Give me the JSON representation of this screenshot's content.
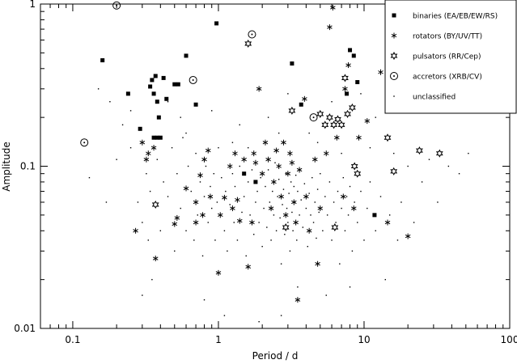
{
  "chart_data": {
    "type": "scatter",
    "title": "",
    "xlabel": "Period / d",
    "ylabel": "Amplitude",
    "x_scale": "log",
    "y_scale": "log",
    "xlim": [
      0.06,
      100
    ],
    "ylim": [
      0.01,
      1
    ],
    "x_ticks": [
      {
        "value": 0.1,
        "label": "0.1"
      },
      {
        "value": 1,
        "label": "1"
      },
      {
        "value": 10,
        "label": "10"
      },
      {
        "value": 100,
        "label": "100"
      }
    ],
    "y_ticks": [
      {
        "value": 0.01,
        "label": "0.01"
      },
      {
        "value": 0.1,
        "label": "0.1"
      },
      {
        "value": 1,
        "label": "1"
      }
    ],
    "grid": false,
    "legend_position": "top-right",
    "series": [
      {
        "name": "binaries (EA/EB/EW/RS)",
        "marker": "filled-square",
        "points": [
          [
            0.16,
            0.45
          ],
          [
            0.24,
            0.28
          ],
          [
            0.29,
            0.17
          ],
          [
            0.34,
            0.31
          ],
          [
            0.35,
            0.34
          ],
          [
            0.36,
            0.28
          ],
          [
            0.37,
            0.36
          ],
          [
            0.38,
            0.25
          ],
          [
            0.39,
            0.2
          ],
          [
            0.36,
            0.15
          ],
          [
            0.38,
            0.15
          ],
          [
            0.4,
            0.15
          ],
          [
            0.42,
            0.35
          ],
          [
            0.44,
            0.26
          ],
          [
            0.5,
            0.32
          ],
          [
            0.53,
            0.32
          ],
          [
            0.6,
            0.48
          ],
          [
            0.7,
            0.24
          ],
          [
            0.97,
            0.76
          ],
          [
            1.5,
            0.09
          ],
          [
            1.8,
            0.08
          ],
          [
            3.2,
            0.43
          ],
          [
            3.7,
            0.24
          ],
          [
            7.6,
            0.28
          ],
          [
            8.0,
            0.52
          ],
          [
            8.5,
            0.48
          ],
          [
            9.0,
            0.33
          ],
          [
            11.8,
            0.05
          ],
          [
            14.5,
            0.43
          ]
        ]
      },
      {
        "name": "rotators (BY/UV/TT)",
        "marker": "asterisk",
        "points": [
          [
            0.27,
            0.04
          ],
          [
            0.3,
            0.14
          ],
          [
            0.32,
            0.11
          ],
          [
            0.33,
            0.12
          ],
          [
            0.36,
            0.13
          ],
          [
            0.37,
            0.027
          ],
          [
            0.5,
            0.044
          ],
          [
            0.52,
            0.048
          ],
          [
            0.6,
            0.073
          ],
          [
            0.7,
            0.045
          ],
          [
            0.7,
            0.06
          ],
          [
            0.75,
            0.088
          ],
          [
            0.78,
            0.05
          ],
          [
            0.8,
            0.11
          ],
          [
            0.85,
            0.125
          ],
          [
            0.88,
            0.065
          ],
          [
            1.0,
            0.022
          ],
          [
            1.03,
            0.05
          ],
          [
            1.1,
            0.064
          ],
          [
            1.2,
            0.1
          ],
          [
            1.25,
            0.055
          ],
          [
            1.3,
            0.12
          ],
          [
            1.35,
            0.062
          ],
          [
            1.4,
            0.046
          ],
          [
            1.5,
            0.11
          ],
          [
            1.6,
            0.024
          ],
          [
            1.7,
            0.045
          ],
          [
            1.75,
            0.12
          ],
          [
            1.8,
            0.105
          ],
          [
            1.9,
            0.3
          ],
          [
            2.0,
            0.09
          ],
          [
            2.1,
            0.14
          ],
          [
            2.2,
            0.11
          ],
          [
            2.3,
            0.055
          ],
          [
            2.4,
            0.08
          ],
          [
            2.5,
            0.125
          ],
          [
            2.6,
            0.1
          ],
          [
            2.7,
            0.065
          ],
          [
            2.8,
            0.14
          ],
          [
            2.9,
            0.05
          ],
          [
            3.0,
            0.09
          ],
          [
            3.1,
            0.12
          ],
          [
            3.2,
            0.105
          ],
          [
            3.3,
            0.06
          ],
          [
            3.4,
            0.045
          ],
          [
            3.5,
            0.015
          ],
          [
            3.6,
            0.095
          ],
          [
            3.9,
            0.26
          ],
          [
            4.0,
            0.065
          ],
          [
            4.2,
            0.04
          ],
          [
            4.6,
            0.11
          ],
          [
            4.8,
            0.025
          ],
          [
            5.0,
            0.055
          ],
          [
            5.5,
            0.12
          ],
          [
            5.8,
            0.72
          ],
          [
            6.1,
            0.95
          ],
          [
            6.5,
            0.15
          ],
          [
            7.2,
            0.065
          ],
          [
            7.4,
            0.3
          ],
          [
            7.8,
            0.42
          ],
          [
            8.5,
            0.055
          ],
          [
            9.2,
            0.15
          ],
          [
            10.5,
            0.19
          ],
          [
            13.0,
            0.38
          ],
          [
            14.5,
            0.045
          ],
          [
            20.0,
            0.037
          ]
        ]
      },
      {
        "name": "pulsators (RR/Cep)",
        "marker": "star",
        "points": [
          [
            0.37,
            0.058
          ],
          [
            1.6,
            0.57
          ],
          [
            3.2,
            0.22
          ],
          [
            2.9,
            0.042
          ],
          [
            5.0,
            0.21
          ],
          [
            5.4,
            0.18
          ],
          [
            5.8,
            0.2
          ],
          [
            6.2,
            0.18
          ],
          [
            6.6,
            0.195
          ],
          [
            7.0,
            0.18
          ],
          [
            7.4,
            0.35
          ],
          [
            7.7,
            0.21
          ],
          [
            8.3,
            0.23
          ],
          [
            8.6,
            0.1
          ],
          [
            9.0,
            0.09
          ],
          [
            6.3,
            0.042
          ],
          [
            14.5,
            0.15
          ],
          [
            16.0,
            0.093
          ],
          [
            24.0,
            0.125
          ],
          [
            33.0,
            0.12
          ]
        ]
      },
      {
        "name": "accretors (XRB/CV)",
        "marker": "dotted-circle",
        "points": [
          [
            0.12,
            0.14
          ],
          [
            0.2,
            0.98
          ],
          [
            0.67,
            0.34
          ],
          [
            1.7,
            0.65
          ],
          [
            4.5,
            0.2
          ]
        ]
      },
      {
        "name": "unclassified",
        "marker": "dot",
        "points": [
          [
            0.13,
            0.085
          ],
          [
            0.15,
            0.3
          ],
          [
            0.17,
            0.06
          ],
          [
            0.2,
            0.11
          ],
          [
            0.22,
            0.18
          ],
          [
            0.25,
            0.22
          ],
          [
            0.28,
            0.06
          ],
          [
            0.3,
            0.045
          ],
          [
            0.32,
            0.09
          ],
          [
            0.33,
            0.035
          ],
          [
            0.34,
            0.07
          ],
          [
            0.35,
            0.02
          ],
          [
            0.38,
            0.11
          ],
          [
            0.4,
            0.04
          ],
          [
            0.42,
            0.08
          ],
          [
            0.45,
            0.065
          ],
          [
            0.48,
            0.13
          ],
          [
            0.5,
            0.03
          ],
          [
            0.52,
            0.09
          ],
          [
            0.55,
            0.055
          ],
          [
            0.57,
            0.15
          ],
          [
            0.6,
            0.04
          ],
          [
            0.62,
            0.1
          ],
          [
            0.65,
            0.07
          ],
          [
            0.68,
            0.035
          ],
          [
            0.7,
            0.12
          ],
          [
            0.72,
            0.05
          ],
          [
            0.75,
            0.08
          ],
          [
            0.78,
            0.028
          ],
          [
            0.8,
            0.065
          ],
          [
            0.82,
            0.1
          ],
          [
            0.85,
            0.045
          ],
          [
            0.88,
            0.075
          ],
          [
            0.9,
            0.055
          ],
          [
            0.93,
            0.09
          ],
          [
            0.95,
            0.035
          ],
          [
            0.98,
            0.06
          ],
          [
            1.0,
            0.13
          ],
          [
            1.05,
            0.085
          ],
          [
            1.1,
            0.04
          ],
          [
            1.12,
            0.07
          ],
          [
            1.15,
            0.03
          ],
          [
            1.2,
            0.058
          ],
          [
            1.25,
            0.09
          ],
          [
            1.28,
            0.045
          ],
          [
            1.3,
            0.075
          ],
          [
            1.35,
            0.035
          ],
          [
            1.4,
            0.1
          ],
          [
            1.45,
            0.052
          ],
          [
            1.5,
            0.065
          ],
          [
            1.55,
            0.028
          ],
          [
            1.6,
            0.08
          ],
          [
            1.65,
            0.05
          ],
          [
            1.7,
            0.095
          ],
          [
            1.75,
            0.038
          ],
          [
            1.8,
            0.06
          ],
          [
            1.85,
            0.07
          ],
          [
            1.9,
            0.045
          ],
          [
            1.95,
            0.085
          ],
          [
            2.0,
            0.032
          ],
          [
            2.05,
            0.055
          ],
          [
            2.1,
            0.075
          ],
          [
            2.15,
            0.042
          ],
          [
            2.2,
            0.095
          ],
          [
            2.25,
            0.06
          ],
          [
            2.3,
            0.035
          ],
          [
            2.35,
            0.07
          ],
          [
            2.4,
            0.05
          ],
          [
            2.45,
            0.105
          ],
          [
            2.5,
            0.04
          ],
          [
            2.55,
            0.065
          ],
          [
            2.6,
            0.083
          ],
          [
            2.65,
            0.048
          ],
          [
            2.7,
            0.025
          ],
          [
            2.75,
            0.058
          ],
          [
            2.8,
            0.072
          ],
          [
            2.85,
            0.038
          ],
          [
            2.9,
            0.09
          ],
          [
            2.95,
            0.055
          ],
          [
            3.0,
            0.045
          ],
          [
            3.05,
            0.068
          ],
          [
            3.1,
            0.03
          ],
          [
            3.15,
            0.08
          ],
          [
            3.2,
            0.052
          ],
          [
            3.25,
            0.04
          ],
          [
            3.3,
            0.075
          ],
          [
            3.35,
            0.06
          ],
          [
            3.4,
            0.088
          ],
          [
            3.45,
            0.035
          ],
          [
            3.5,
            0.07
          ],
          [
            3.6,
            0.05
          ],
          [
            3.7,
            0.062
          ],
          [
            3.8,
            0.042
          ],
          [
            3.9,
            0.078
          ],
          [
            4.0,
            0.055
          ],
          [
            4.1,
            0.032
          ],
          [
            4.2,
            0.068
          ],
          [
            4.3,
            0.05
          ],
          [
            4.4,
            0.085
          ],
          [
            4.5,
            0.045
          ],
          [
            4.6,
            0.06
          ],
          [
            4.7,
            0.036
          ],
          [
            4.8,
            0.072
          ],
          [
            4.9,
            0.052
          ],
          [
            5.0,
            0.09
          ],
          [
            5.2,
            0.04
          ],
          [
            5.4,
            0.065
          ],
          [
            5.6,
            0.05
          ],
          [
            5.8,
            0.08
          ],
          [
            6.0,
            0.035
          ],
          [
            6.2,
            0.06
          ],
          [
            6.4,
            0.045
          ],
          [
            6.6,
            0.07
          ],
          [
            6.8,
            0.025
          ],
          [
            7.0,
            0.055
          ],
          [
            7.2,
            0.085
          ],
          [
            7.4,
            0.04
          ],
          [
            7.6,
            0.065
          ],
          [
            7.8,
            0.05
          ],
          [
            8.0,
            0.075
          ],
          [
            8.3,
            0.03
          ],
          [
            8.6,
            0.06
          ],
          [
            9.0,
            0.045
          ],
          [
            9.5,
            0.07
          ],
          [
            10.0,
            0.035
          ],
          [
            10.5,
            0.055
          ],
          [
            11.0,
            0.08
          ],
          [
            12.0,
            0.04
          ],
          [
            13.0,
            0.065
          ],
          [
            14.0,
            0.02
          ],
          [
            15.0,
            0.05
          ],
          [
            16.0,
            0.12
          ],
          [
            17.0,
            0.035
          ],
          [
            18.0,
            0.06
          ],
          [
            20.0,
            0.1
          ],
          [
            22.0,
            0.045
          ],
          [
            25.0,
            0.08
          ],
          [
            28.0,
            0.11
          ],
          [
            32.0,
            0.06
          ],
          [
            38.0,
            0.1
          ],
          [
            45.0,
            0.09
          ],
          [
            52.0,
            0.12
          ],
          [
            1.1,
            0.012
          ],
          [
            1.9,
            0.011
          ],
          [
            2.7,
            0.012
          ],
          [
            0.3,
            0.016
          ],
          [
            5.5,
            0.016
          ],
          [
            8.0,
            0.018
          ],
          [
            0.8,
            0.015
          ],
          [
            3.5,
            0.018
          ],
          [
            0.45,
            0.25
          ],
          [
            0.9,
            0.22
          ],
          [
            1.4,
            0.18
          ],
          [
            2.2,
            0.2
          ],
          [
            3.0,
            0.28
          ],
          [
            4.2,
            0.16
          ],
          [
            6.0,
            0.25
          ],
          [
            9.5,
            0.28
          ],
          [
            12.0,
            0.2
          ],
          [
            0.25,
            0.13
          ],
          [
            0.18,
            0.25
          ],
          [
            0.6,
            0.16
          ],
          [
            1.25,
            0.14
          ],
          [
            2.6,
            0.16
          ],
          [
            4.8,
            0.14
          ],
          [
            7.0,
            0.12
          ],
          [
            11.0,
            0.13
          ],
          [
            0.55,
            0.2
          ],
          [
            1.6,
            0.13
          ]
        ]
      }
    ]
  }
}
